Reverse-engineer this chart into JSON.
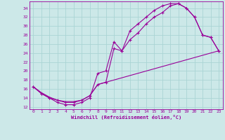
{
  "xlabel": "Windchill (Refroidissement éolien,°C)",
  "background_color": "#cce8e8",
  "grid_color": "#aad4d4",
  "line_color": "#990099",
  "xlim": [
    -0.5,
    23.5
  ],
  "ylim": [
    11.5,
    35.5
  ],
  "yticks": [
    12,
    14,
    16,
    18,
    20,
    22,
    24,
    26,
    28,
    30,
    32,
    34
  ],
  "xticks": [
    0,
    1,
    2,
    3,
    4,
    5,
    6,
    7,
    8,
    9,
    10,
    11,
    12,
    13,
    14,
    15,
    16,
    17,
    18,
    19,
    20,
    21,
    22,
    23
  ],
  "line1_x": [
    0,
    1,
    2,
    3,
    4,
    5,
    6,
    7,
    8,
    9,
    10,
    11,
    12,
    13,
    14,
    15,
    16,
    17,
    18,
    19,
    20,
    21,
    22,
    23
  ],
  "line1_y": [
    16.5,
    15.0,
    14.0,
    13.0,
    12.5,
    12.5,
    13.0,
    14.0,
    19.5,
    20.0,
    26.5,
    24.5,
    29.0,
    30.5,
    32.0,
    33.5,
    34.5,
    35.0,
    35.0,
    34.0,
    32.0,
    28.0,
    27.5,
    24.5
  ],
  "line2_x": [
    0,
    1,
    2,
    3,
    4,
    5,
    6,
    7,
    8,
    9,
    10,
    11,
    12,
    13,
    14,
    15,
    16,
    17,
    18,
    19,
    20,
    21,
    22,
    23
  ],
  "line2_y": [
    16.5,
    15.0,
    14.0,
    13.5,
    13.0,
    13.0,
    13.5,
    14.5,
    17.0,
    17.5,
    25.0,
    24.5,
    27.0,
    28.5,
    30.5,
    32.0,
    33.0,
    34.5,
    35.0,
    34.0,
    32.0,
    28.0,
    27.5,
    24.5
  ],
  "line3_x": [
    0,
    1,
    2,
    3,
    4,
    5,
    6,
    7,
    8,
    23
  ],
  "line3_y": [
    16.5,
    15.2,
    14.2,
    13.5,
    13.2,
    13.2,
    13.5,
    14.5,
    17.0,
    24.5
  ],
  "marker": "+"
}
